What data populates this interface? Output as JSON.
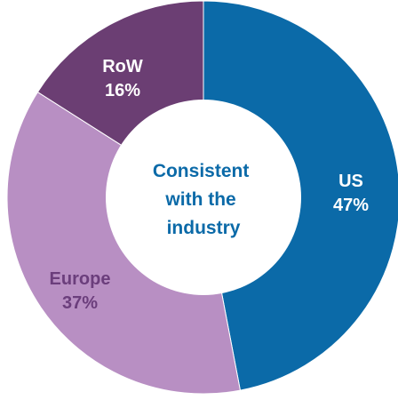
{
  "chart_data": {
    "type": "pie",
    "variant": "donut",
    "center_text": [
      "Consistent",
      "with the",
      "industry"
    ],
    "slices": [
      {
        "name": "US",
        "value": 47,
        "value_label": "47%",
        "color": "#0b6aa8",
        "label_color": "#ffffff"
      },
      {
        "name": "Europe",
        "value": 37,
        "value_label": "37%",
        "color": "#b88fc3",
        "label_color": "#6b3e7c"
      },
      {
        "name": "RoW",
        "value": 16,
        "value_label": "16%",
        "color": "#6b3e73",
        "label_color": "#ffffff"
      }
    ]
  }
}
